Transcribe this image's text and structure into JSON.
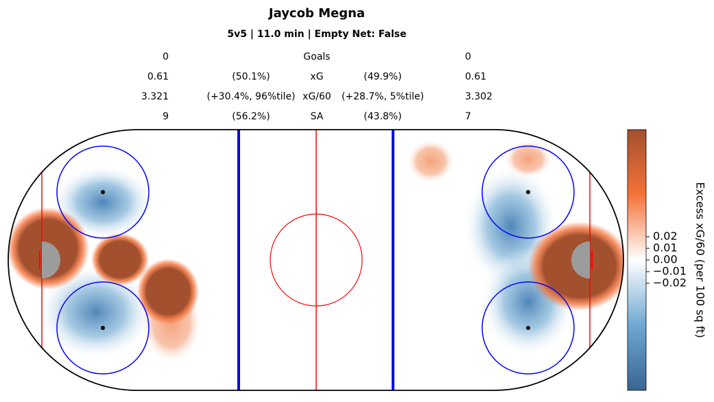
{
  "chart_data": {
    "type": "rink-heatmap",
    "title": "Jaycob Megna",
    "subtitle": "5v5 | 11.0 min | Empty Net: False",
    "stats": [
      {
        "label": "Goals",
        "left": 0,
        "right": 0
      },
      {
        "label": "xG",
        "left": 0.61,
        "left_share": "(50.1%)",
        "right_share": "(49.9%)",
        "right": 0.61
      },
      {
        "label": "xG/60",
        "left": 3.321,
        "left_share": "(+30.4%, 96%tile)",
        "right_share": "(+28.7%, 5%tile)",
        "right": 3.302
      },
      {
        "label": "SA",
        "left": 9,
        "left_share": "(56.2%)",
        "right_share": "(43.8%)",
        "right": 7
      }
    ],
    "colorbar": {
      "label": "Excess xG/60 (per 100 sq ft)",
      "clim": [
        -0.112,
        0.112
      ],
      "colors": [
        "#3a6594",
        "#6fa8d1",
        "#ffffff",
        "#f4733a",
        "#a3502f"
      ],
      "ticks": [
        0.02,
        0.01,
        {
          "value": 0,
          "label": "0.00"
        },
        {
          "value": -0.01,
          "label": "−0.01"
        },
        {
          "value": -0.02,
          "label": "−0.02"
        }
      ]
    }
  }
}
